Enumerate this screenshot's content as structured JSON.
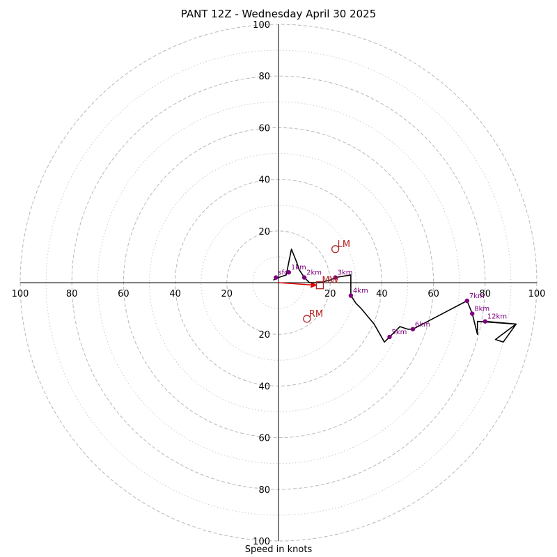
{
  "chart_data": {
    "type": "scatter",
    "title": "PANT 12Z - Wednesday April 30 2025",
    "xlabel": "Speed in knots",
    "ylabel": "",
    "xlim": [
      -100,
      100
    ],
    "ylim": [
      -100,
      100
    ],
    "ring_labels": [
      "20",
      "40",
      "60",
      "80",
      "100"
    ],
    "rings_dashed": [
      20,
      40,
      60,
      80,
      100
    ],
    "rings_dotted": [
      10,
      30,
      50,
      70,
      90
    ],
    "hodograph_trace": [
      [
        -2,
        1
      ],
      [
        0,
        2
      ],
      [
        3,
        3
      ],
      [
        5,
        13
      ],
      [
        7,
        8
      ],
      [
        8,
        5
      ],
      [
        10,
        2
      ],
      [
        12,
        0
      ],
      [
        16,
        0
      ],
      [
        20,
        1
      ],
      [
        22,
        2
      ],
      [
        28,
        3
      ],
      [
        28,
        -1
      ],
      [
        28,
        -5
      ],
      [
        30,
        -8
      ],
      [
        32,
        -10
      ],
      [
        37,
        -16
      ],
      [
        41,
        -23
      ],
      [
        43,
        -21
      ],
      [
        47,
        -17
      ],
      [
        50,
        -18
      ],
      [
        52,
        -18
      ],
      [
        73,
        -7
      ],
      [
        75,
        -12
      ],
      [
        77,
        -20
      ],
      [
        77,
        -15
      ],
      [
        92,
        -16
      ],
      [
        84,
        -22
      ],
      [
        87,
        -23
      ],
      [
        92,
        -16
      ],
      [
        80,
        -15
      ]
    ],
    "height_markers": [
      {
        "label": "sfc",
        "u": -1,
        "v": 2
      },
      {
        "label": "1km",
        "u": 4,
        "v": 4
      },
      {
        "label": "2km",
        "u": 10,
        "v": 2
      },
      {
        "label": "3km",
        "u": 22,
        "v": 2
      },
      {
        "label": "4km",
        "u": 28,
        "v": -5
      },
      {
        "label": "5km",
        "u": 43,
        "v": -21
      },
      {
        "label": "6km",
        "u": 52,
        "v": -18
      },
      {
        "label": "7km",
        "u": 73,
        "v": -7
      },
      {
        "label": "8km",
        "u": 75,
        "v": -12
      },
      {
        "label": "12km",
        "u": 80,
        "v": -15
      }
    ],
    "storm_motion": [
      {
        "label": "LM",
        "u": 22,
        "v": 13,
        "marker": "circle"
      },
      {
        "label": "MW",
        "u": 16,
        "v": -1,
        "marker": "square"
      },
      {
        "label": "RM",
        "u": 11,
        "v": -14,
        "marker": "circle"
      }
    ],
    "arrow": {
      "from": [
        0,
        0
      ],
      "to": [
        16,
        -1
      ]
    },
    "colors": {
      "trace": "#000000",
      "marker": "#800080",
      "storm": "#b22222",
      "arrow": "#e00000",
      "grid": "#b8b8b8"
    }
  }
}
